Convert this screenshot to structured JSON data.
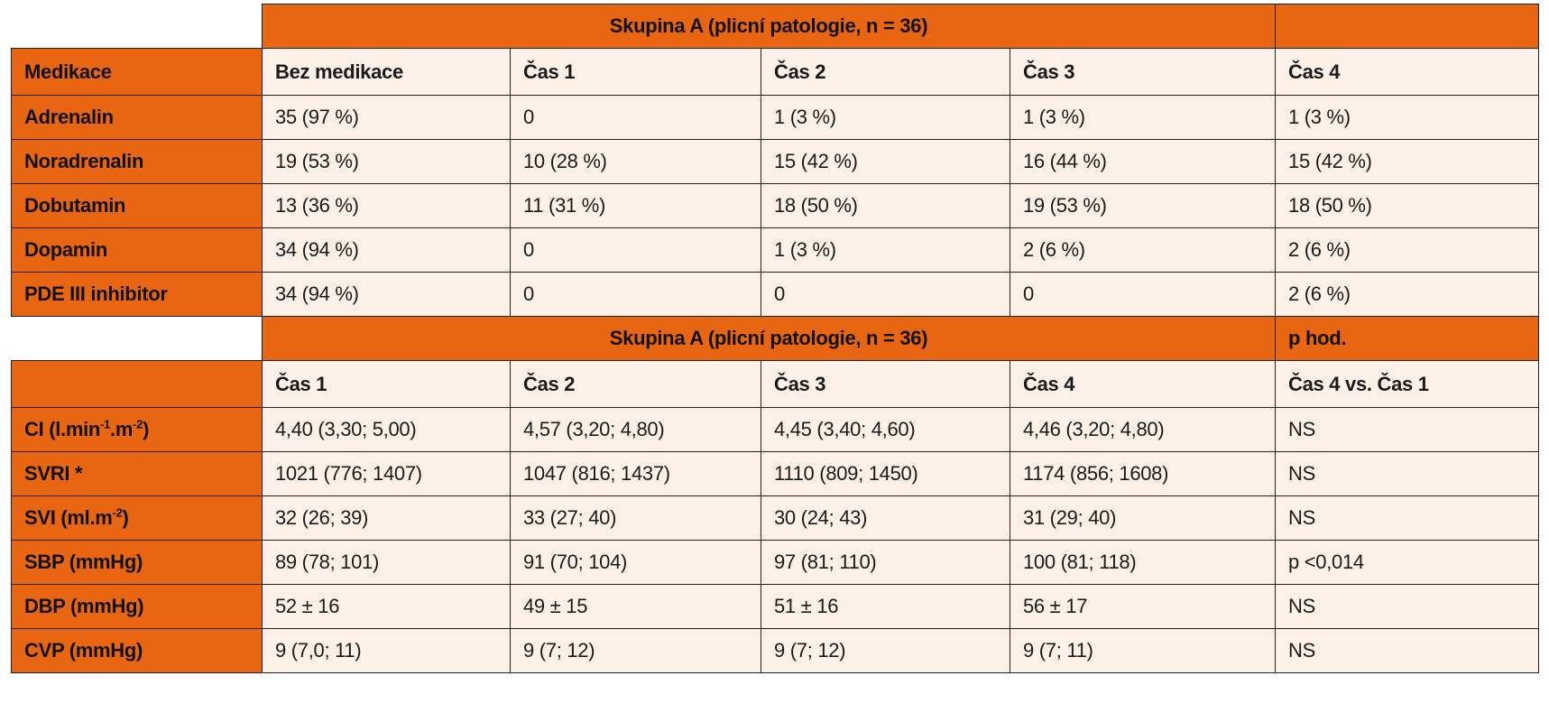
{
  "table1": {
    "group_header": "Skupina A (plicní patologie, n = 36)",
    "last_header": "",
    "columns": [
      "Medikace",
      "Bez medikace",
      "Čas 1",
      "Čas 2",
      "Čas 3",
      "Čas 4"
    ],
    "rows": [
      {
        "label": "Adrenalin",
        "cells": [
          "35 (97 %)",
          "0",
          "1 (3 %)",
          "1 (3 %)",
          "1 (3 %)"
        ]
      },
      {
        "label": "Noradrenalin",
        "cells": [
          "19 (53 %)",
          "10 (28 %)",
          "15 (42 %)",
          "16 (44 %)",
          "15 (42 %)"
        ]
      },
      {
        "label": "Dobutamin",
        "cells": [
          "13 (36 %)",
          "11 (31 %)",
          "18 (50 %)",
          "19 (53 %)",
          "18 (50 %)"
        ]
      },
      {
        "label": "Dopamin",
        "cells": [
          "34 (94 %)",
          "0",
          "1 (3 %)",
          "2 (6 %)",
          "2 (6 %)"
        ]
      },
      {
        "label": "PDE III inhibitor",
        "cells": [
          "34 (94 %)",
          "0",
          "0",
          "0",
          "2 (6 %)"
        ]
      }
    ]
  },
  "table2": {
    "group_header": "Skupina A (plicní patologie, n = 36)",
    "p_header": "p hod.",
    "columns": [
      "",
      "Čas 1",
      "Čas 2",
      "Čas 3",
      "Čas 4",
      "Čas 4 vs. Čas 1"
    ],
    "rows": [
      {
        "label_main": "CI (l.min",
        "label_sup1": "-1",
        "label_mid": ".m",
        "label_sup2": "-2",
        "label_end": ")",
        "cells": [
          "4,40 (3,30; 5,00)",
          "4,57 (3,20; 4,80)",
          "4,45 (3,40; 4,60)",
          " 4,46 (3,20; 4,80)",
          "NS"
        ]
      },
      {
        "label": "SVRI *",
        "cells": [
          "1021 (776; 1407)",
          "1047 (816; 1437)",
          "1110 (809; 1450)",
          " 1174 (856; 1608)",
          "NS"
        ]
      },
      {
        "label_main": "SVI (ml.m",
        "label_sup": "-2",
        "label_end": ")",
        "cells": [
          "32 (26; 39)",
          "33 (27; 40)",
          "30 (24; 43)",
          "31 (29; 40)",
          "NS"
        ]
      },
      {
        "label": "SBP (mmHg)",
        "cells": [
          "89 (78; 101)",
          "91 (70; 104)",
          "97 (81; 110)",
          " 100 (81; 118)",
          "p <0,014"
        ]
      },
      {
        "label": "DBP (mmHg)",
        "cells": [
          "52  ± 16",
          "49  ± 15",
          "51  ± 16",
          " 56  ± 17",
          "NS"
        ]
      },
      {
        "label": "CVP (mmHg)",
        "cells": [
          "9 (7,0; 11)",
          "9 (7; 12)",
          "9 (7; 12)",
          "9 (7; 11)",
          "NS"
        ]
      }
    ]
  }
}
